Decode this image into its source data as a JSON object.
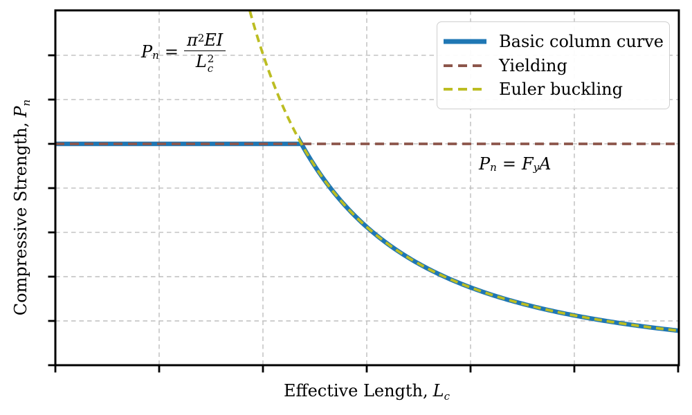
{
  "figure": {
    "background": "#ffffff",
    "spine_color": "#000000",
    "text_color": "#000000"
  },
  "axes": {
    "xlabel": {
      "prefix": "Effective Length,",
      "var": "L",
      "var_sub": "c"
    },
    "ylabel": {
      "prefix": "Compressive Strength,",
      "var": "P",
      "var_sub": "n"
    }
  },
  "annotations": {
    "euler_formula": {
      "lhs": "P",
      "lhs_sub": "n",
      "equals": "=",
      "num_pi": "π",
      "num_pi_exp": "2",
      "num_rest": "EI",
      "den_base": "L",
      "den_sub": "c",
      "den_exp": "2"
    },
    "yield_formula": {
      "lhs": "P",
      "lhs_sub": "n",
      "equals": "=",
      "rhs_base": "F",
      "rhs_sub": "y",
      "rhs_tail": "A"
    }
  },
  "chart_data": {
    "type": "line",
    "title": "",
    "xlabel": "Effective Length, L_c",
    "ylabel": "Compressive Strength, P_n",
    "xlim": [
      0,
      6.007
    ],
    "ylim": [
      0,
      1.603
    ],
    "xticks": [
      0,
      1,
      2,
      3,
      4,
      5,
      6
    ],
    "yticks": [
      0,
      0.2,
      0.4,
      0.6,
      0.8,
      1.0,
      1.2,
      1.4
    ],
    "tick_labels_shown": false,
    "grid": true,
    "grid_color": "#bdbdbd",
    "grid_dash": "6.5 5",
    "legend_position": "upper right",
    "yield_strength": 1.0,
    "transition_length": 2.37,
    "euler_constant": 5.62,
    "series": [
      {
        "name": "Basic column curve",
        "color": "#1f77b4",
        "linestyle": "solid",
        "linewidth": 6.5,
        "definition": "P = min(1.0, 5.62/L^2)"
      },
      {
        "name": "Yielding",
        "color": "#8c564b",
        "linestyle": "dashed",
        "linewidth": 3.8,
        "dash": "13 8",
        "definition": "P = 1.0 for all L"
      },
      {
        "name": "Euler buckling",
        "color": "#bcbd22",
        "linestyle": "dashed",
        "linewidth": 3.8,
        "dash": "11 7",
        "definition": "P = 5.62/L^2"
      }
    ],
    "sample_points": {
      "L": [
        1.87,
        2.0,
        2.37,
        3.0,
        4.0,
        5.0,
        6.0
      ],
      "euler_P": [
        1.6,
        1.41,
        1.0,
        0.62,
        0.35,
        0.22,
        0.16
      ],
      "basic_P": [
        1.0,
        1.0,
        1.0,
        0.62,
        0.35,
        0.22,
        0.16
      ],
      "yield_P": [
        1.0,
        1.0,
        1.0,
        1.0,
        1.0,
        1.0,
        1.0
      ]
    }
  }
}
